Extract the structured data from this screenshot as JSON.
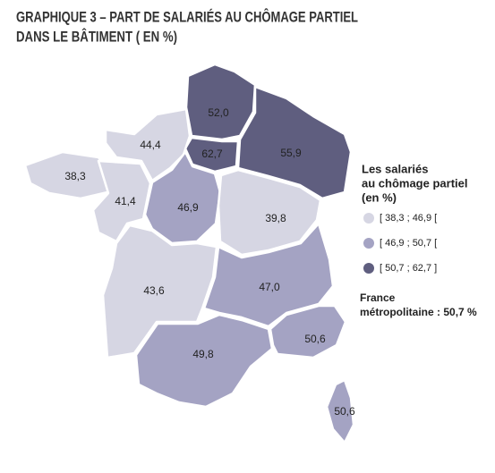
{
  "chart_data": {
    "type": "choropleth",
    "title": [
      "GRAPHIQUE 3 – PART DE SALARIÉS AU CHÔMAGE PARTIEL",
      "DANS LE BÂTIMENT ( EN %)"
    ],
    "values": [
      52.0,
      62.7,
      55.9,
      44.4,
      38.3,
      41.4,
      46.9,
      39.8,
      43.6,
      47.0,
      49.8,
      50.6,
      50.6
    ],
    "value_labels": [
      "52,0",
      "62,7",
      "55,9",
      "44,4",
      "38,3",
      "41,4",
      "46,9",
      "39,8",
      "43,6",
      "47,0",
      "49,8",
      "50,6",
      "50,6"
    ],
    "legend_title": [
      "Les salariés",
      "au chômage partiel",
      "(en %)"
    ],
    "classes": [
      {
        "min": 38.3,
        "max": 46.9,
        "label": "[ 38,3 ; 46,9 [",
        "color": "#d6d6e3"
      },
      {
        "min": 46.9,
        "max": 50.7,
        "label": "[ 46,9 ; 50,7 [",
        "color": "#a4a3c3"
      },
      {
        "min": 50.7,
        "max": 62.7,
        "label": "[ 50,7 ; 62,7 ]",
        "color": "#5f5e7f"
      }
    ],
    "note": [
      "France",
      "métropolitaine : 50,7 %"
    ]
  }
}
